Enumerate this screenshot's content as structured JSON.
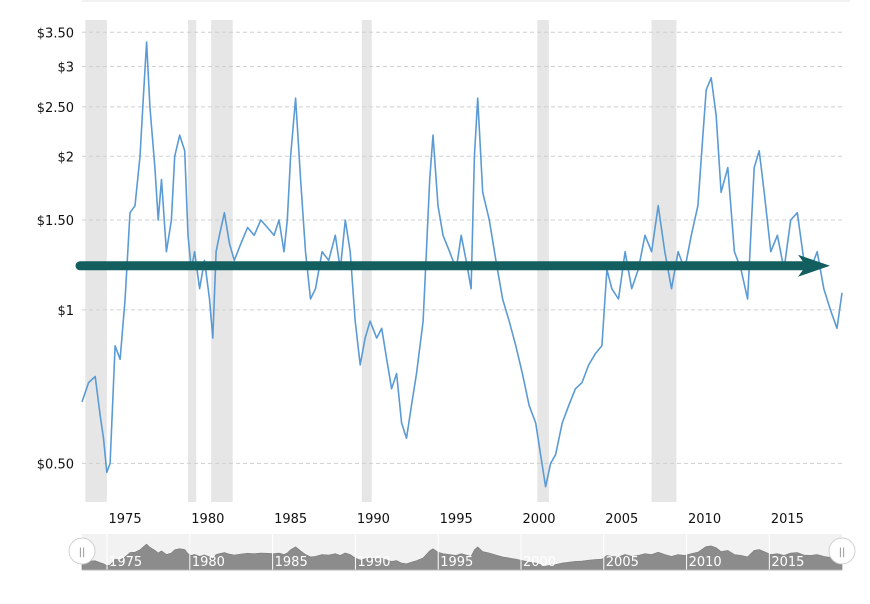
{
  "chart_data": {
    "type": "line",
    "title": "",
    "xlabel": "",
    "ylabel": "",
    "scale": "log",
    "xlim": [
      1972.4,
      2018.3
    ],
    "ylim": [
      0.42,
      3.7
    ],
    "y_ticks": [
      {
        "value": 0.5,
        "label": "$0.50"
      },
      {
        "value": 1,
        "label": "$1"
      },
      {
        "value": 1.5,
        "label": "$1.50"
      },
      {
        "value": 2,
        "label": "$2"
      },
      {
        "value": 2.5,
        "label": "$2.50"
      },
      {
        "value": 3,
        "label": "$3"
      },
      {
        "value": 3.5,
        "label": "$3.50"
      }
    ],
    "x_ticks": [
      {
        "value": 1975,
        "label": "1975"
      },
      {
        "value": 1980,
        "label": "1980"
      },
      {
        "value": 1985,
        "label": "1985"
      },
      {
        "value": 1990,
        "label": "1990"
      },
      {
        "value": 1995,
        "label": "1995"
      },
      {
        "value": 2000,
        "label": "2000"
      },
      {
        "value": 2005,
        "label": "2005"
      },
      {
        "value": 2010,
        "label": "2010"
      },
      {
        "value": 2015,
        "label": "2015"
      }
    ],
    "grid": true,
    "recession_bands": [
      [
        1972.6,
        1973.9
      ],
      [
        1978.8,
        1979.3
      ],
      [
        1980.2,
        1981.5
      ],
      [
        1989.3,
        1989.9
      ],
      [
        1999.9,
        2000.6
      ],
      [
        2006.8,
        2008.3
      ]
    ],
    "trend_level": 1.22,
    "series": [
      {
        "color": "#5b9bd5",
        "x": [
          1972.4,
          1972.8,
          1973.2,
          1973.5,
          1973.7,
          1973.9,
          1974.1,
          1974.4,
          1974.7,
          1975.0,
          1975.3,
          1975.6,
          1975.9,
          1976.1,
          1976.3,
          1976.5,
          1976.8,
          1977.0,
          1977.2,
          1977.5,
          1977.8,
          1978.0,
          1978.3,
          1978.6,
          1978.8,
          1979.0,
          1979.2,
          1979.5,
          1979.8,
          1980.1,
          1980.3,
          1980.5,
          1980.7,
          1981.0,
          1981.3,
          1981.6,
          1982.0,
          1982.4,
          1982.8,
          1983.2,
          1983.6,
          1984.0,
          1984.3,
          1984.6,
          1984.8,
          1985.0,
          1985.3,
          1985.6,
          1985.9,
          1986.2,
          1986.5,
          1986.9,
          1987.3,
          1987.7,
          1988.0,
          1988.3,
          1988.6,
          1988.9,
          1989.2,
          1989.5,
          1989.8,
          1990.2,
          1990.5,
          1990.8,
          1991.1,
          1991.4,
          1991.7,
          1992.0,
          1992.3,
          1992.6,
          1993.0,
          1993.2,
          1993.4,
          1993.6,
          1993.9,
          1994.2,
          1994.6,
          1995.0,
          1995.3,
          1995.6,
          1995.9,
          1996.1,
          1996.3,
          1996.6,
          1997.0,
          1997.4,
          1997.8,
          1998.2,
          1998.6,
          1999.0,
          1999.4,
          1999.8,
          2000.1,
          2000.4,
          2000.7,
          2001.0,
          2001.4,
          2001.8,
          2002.2,
          2002.6,
          2003.0,
          2003.4,
          2003.8,
          2004.1,
          2004.4,
          2004.8,
          2005.2,
          2005.6,
          2006.0,
          2006.4,
          2006.8,
          2007.2,
          2007.6,
          2008.0,
          2008.4,
          2008.8,
          2009.2,
          2009.6,
          2009.9,
          2010.1,
          2010.4,
          2010.7,
          2011.0,
          2011.4,
          2011.8,
          2012.2,
          2012.6,
          2013.0,
          2013.3,
          2013.6,
          2014.0,
          2014.4,
          2014.8,
          2015.2,
          2015.6,
          2016.0,
          2016.4,
          2016.8,
          2017.2,
          2017.6,
          2018.0,
          2018.3
        ],
        "y": [
          0.66,
          0.72,
          0.74,
          0.62,
          0.56,
          0.48,
          0.5,
          0.85,
          0.8,
          1.05,
          1.55,
          1.6,
          2.0,
          2.6,
          3.35,
          2.5,
          1.9,
          1.5,
          1.8,
          1.3,
          1.5,
          2.0,
          2.2,
          2.05,
          1.4,
          1.2,
          1.3,
          1.1,
          1.25,
          1.05,
          0.88,
          1.3,
          1.4,
          1.55,
          1.35,
          1.25,
          1.35,
          1.45,
          1.4,
          1.5,
          1.45,
          1.4,
          1.5,
          1.3,
          1.5,
          2.0,
          2.6,
          1.8,
          1.3,
          1.05,
          1.1,
          1.3,
          1.25,
          1.4,
          1.2,
          1.5,
          1.3,
          0.95,
          0.78,
          0.88,
          0.95,
          0.88,
          0.92,
          0.8,
          0.7,
          0.75,
          0.6,
          0.56,
          0.65,
          0.75,
          0.95,
          1.3,
          1.8,
          2.2,
          1.6,
          1.4,
          1.3,
          1.2,
          1.4,
          1.25,
          1.1,
          2.0,
          2.6,
          1.7,
          1.5,
          1.25,
          1.05,
          0.95,
          0.85,
          0.75,
          0.65,
          0.6,
          0.52,
          0.45,
          0.5,
          0.52,
          0.6,
          0.65,
          0.7,
          0.72,
          0.78,
          0.82,
          0.85,
          1.2,
          1.1,
          1.05,
          1.3,
          1.1,
          1.2,
          1.4,
          1.3,
          1.6,
          1.3,
          1.1,
          1.3,
          1.2,
          1.4,
          1.6,
          2.2,
          2.7,
          2.85,
          2.4,
          1.7,
          1.9,
          1.3,
          1.2,
          1.05,
          1.9,
          2.05,
          1.7,
          1.3,
          1.4,
          1.2,
          1.5,
          1.55,
          1.25,
          1.2,
          1.3,
          1.1,
          1.0,
          0.92,
          1.08
        ]
      }
    ]
  },
  "navigator": {
    "x_ticks": [
      "1975",
      "1980",
      "1985",
      "1990",
      "1995",
      "2000",
      "2005",
      "2010",
      "2015"
    ],
    "left_handle_glyph": "||",
    "right_handle_glyph": "||"
  }
}
